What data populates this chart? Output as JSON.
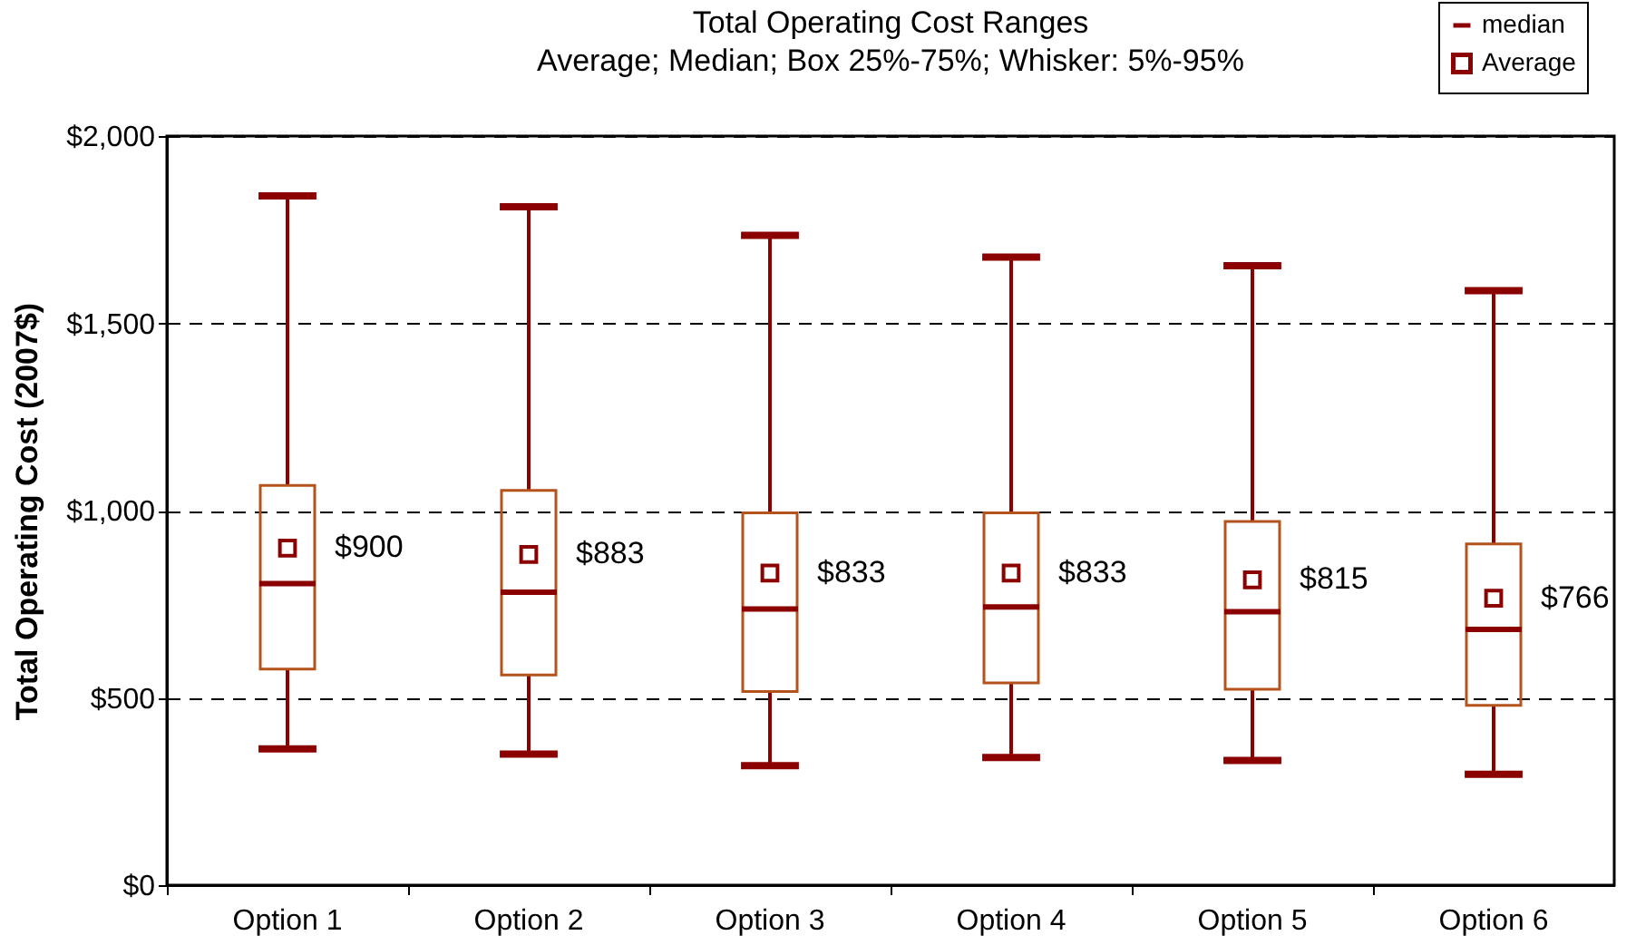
{
  "chart_data": {
    "type": "box",
    "title": "Total Operating Cost Ranges",
    "subtitle": "Average; Median; Box 25%-75%; Whisker: 5%-95%",
    "ylabel": "Total Operating Cost (2007$)",
    "categories": [
      "Option 1",
      "Option 2",
      "Option 3",
      "Option 4",
      "Option 5",
      "Option 6"
    ],
    "series": [
      {
        "name": "median",
        "color": "#8b0000",
        "boxes": [
          {
            "low": 364,
            "q1": 577,
            "median": 805,
            "q3": 1067,
            "high": 1840
          },
          {
            "low": 350,
            "q1": 561,
            "median": 782,
            "q3": 1054,
            "high": 1811
          },
          {
            "low": 319,
            "q1": 517,
            "median": 737,
            "q3": 994,
            "high": 1735
          },
          {
            "low": 341,
            "q1": 540,
            "median": 743,
            "q3": 994,
            "high": 1677
          },
          {
            "low": 333,
            "q1": 523,
            "median": 730,
            "q3": 971,
            "high": 1654
          },
          {
            "low": 296,
            "q1": 480,
            "median": 683,
            "q3": 911,
            "high": 1587
          }
        ]
      },
      {
        "name": "Average",
        "type": "scatter",
        "color": "#8b0000",
        "marker": "square",
        "x": [
          "Option 1",
          "Option 2",
          "Option 3",
          "Option 4",
          "Option 5",
          "Option 6"
        ],
        "values": [
          900,
          883,
          833,
          833,
          815,
          766
        ],
        "value_labels": [
          "$900",
          "$883",
          "$833",
          "$833",
          "$815",
          "$766"
        ]
      }
    ],
    "ylim": [
      0,
      2000
    ],
    "yticks": [
      {
        "value": 0,
        "label": "$0"
      },
      {
        "value": 500,
        "label": "$500"
      },
      {
        "value": 1000,
        "label": "$1,000"
      },
      {
        "value": 1500,
        "label": "$1,500"
      },
      {
        "value": 2000,
        "label": "$2,000"
      }
    ],
    "grid": "y",
    "legend": "top right"
  }
}
